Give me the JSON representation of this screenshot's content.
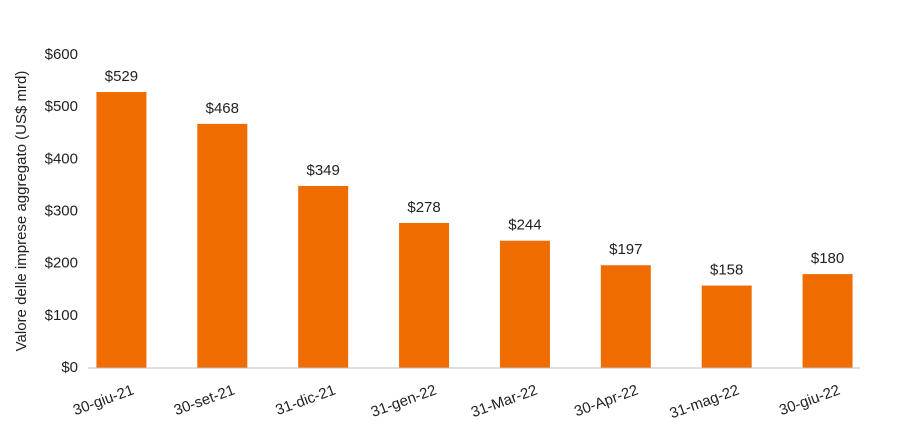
{
  "chart_data": {
    "type": "bar",
    "y_label": "Valore delle imprese aggregato (US$ mrd)",
    "categories": [
      "30-giu-21",
      "30-set-21",
      "31-dic-21",
      "31-gen-22",
      "31-Mar-22",
      "30-Apr-22",
      "31-mag-22",
      "30-giu-22"
    ],
    "values": [
      529,
      468,
      349,
      278,
      244,
      197,
      158,
      180
    ],
    "value_labels": [
      "$529",
      "$468",
      "$349",
      "$278",
      "$244",
      "$197",
      "$158",
      "$180"
    ],
    "color": "#ef6c00",
    "ylim": [
      0,
      600
    ],
    "yticks": [
      {
        "value": 0,
        "label": "$0"
      },
      {
        "value": 100,
        "label": "$100"
      },
      {
        "value": 200,
        "label": "$200"
      },
      {
        "value": 300,
        "label": "$300"
      },
      {
        "value": 400,
        "label": "$400"
      },
      {
        "value": 500,
        "label": "$500"
      },
      {
        "value": 600,
        "label": "$600"
      }
    ],
    "grid": false
  }
}
